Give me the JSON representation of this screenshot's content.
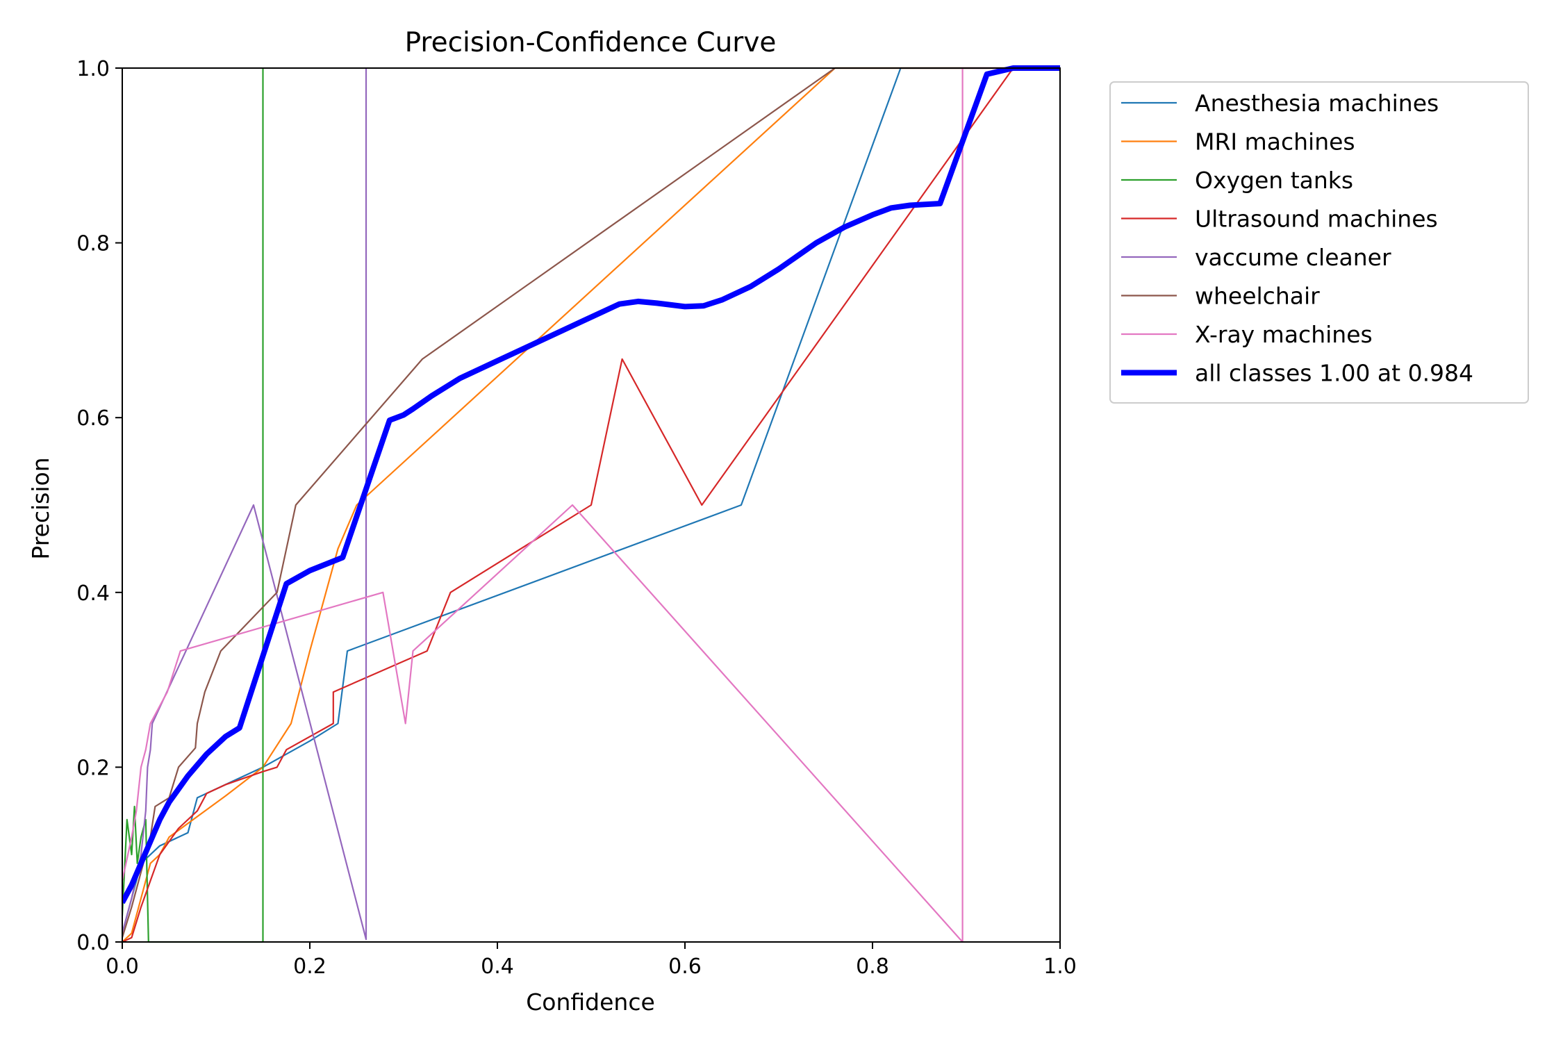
{
  "chart_data": {
    "type": "line",
    "title": "Precision-Confidence Curve",
    "xlabel": "Confidence",
    "ylabel": "Precision",
    "xlim": [
      0,
      1
    ],
    "ylim": [
      0,
      1
    ],
    "xticks": [
      "0.0",
      "0.2",
      "0.4",
      "0.6",
      "0.8",
      "1.0"
    ],
    "yticks": [
      "0.0",
      "0.2",
      "0.4",
      "0.6",
      "0.8",
      "1.0"
    ],
    "grid": false,
    "legend_position": "outside-top-right",
    "series": [
      {
        "name": "Anesthesia machines",
        "color": "#1f77b4",
        "points": [
          [
            0,
            0.01
          ],
          [
            0.01,
            0.05
          ],
          [
            0.02,
            0.09
          ],
          [
            0.03,
            0.1
          ],
          [
            0.04,
            0.11
          ],
          [
            0.07,
            0.125
          ],
          [
            0.08,
            0.165
          ],
          [
            0.1,
            0.175
          ],
          [
            0.15,
            0.2
          ],
          [
            0.2,
            0.23
          ],
          [
            0.23,
            0.25
          ],
          [
            0.24,
            0.333
          ],
          [
            0.66,
            0.5
          ],
          [
            0.83,
            1.0
          ],
          [
            1.0,
            1.0
          ]
        ]
      },
      {
        "name": "MRI machines",
        "color": "#ff7f0e",
        "points": [
          [
            0,
            0.0
          ],
          [
            0.01,
            0.01
          ],
          [
            0.02,
            0.05
          ],
          [
            0.03,
            0.09
          ],
          [
            0.04,
            0.1
          ],
          [
            0.05,
            0.12
          ],
          [
            0.11,
            0.167
          ],
          [
            0.15,
            0.2
          ],
          [
            0.18,
            0.25
          ],
          [
            0.2,
            0.333
          ],
          [
            0.23,
            0.45
          ],
          [
            0.25,
            0.5
          ],
          [
            0.76,
            1.0
          ],
          [
            1.0,
            1.0
          ]
        ]
      },
      {
        "name": "Oxygen tanks",
        "color": "#2ca02c",
        "points": [
          [
            0,
            0.03
          ],
          [
            0.005,
            0.14
          ],
          [
            0.01,
            0.1
          ],
          [
            0.013,
            0.155
          ],
          [
            0.016,
            0.09
          ],
          [
            0.02,
            0.12
          ],
          [
            0.025,
            0.14
          ],
          [
            0.028,
            0.0
          ],
          [
            0.15,
            0.0
          ],
          [
            0.15,
            1.0
          ]
        ]
      },
      {
        "name": "Ultrasound machines",
        "color": "#d62728",
        "points": [
          [
            0,
            0.0
          ],
          [
            0.01,
            0.005
          ],
          [
            0.02,
            0.04
          ],
          [
            0.03,
            0.07
          ],
          [
            0.04,
            0.1
          ],
          [
            0.06,
            0.13
          ],
          [
            0.08,
            0.15
          ],
          [
            0.09,
            0.17
          ],
          [
            0.11,
            0.18
          ],
          [
            0.15,
            0.195
          ],
          [
            0.165,
            0.2
          ],
          [
            0.175,
            0.22
          ],
          [
            0.225,
            0.25
          ],
          [
            0.225,
            0.286
          ],
          [
            0.325,
            0.333
          ],
          [
            0.35,
            0.4
          ],
          [
            0.5,
            0.5
          ],
          [
            0.533,
            0.667
          ],
          [
            0.618,
            0.5
          ],
          [
            0.95,
            1.0
          ],
          [
            1.0,
            1.0
          ]
        ]
      },
      {
        "name": "vaccume cleaner",
        "color": "#9467bd",
        "points": [
          [
            0,
            0.01
          ],
          [
            0.01,
            0.05
          ],
          [
            0.02,
            0.1
          ],
          [
            0.025,
            0.15
          ],
          [
            0.027,
            0.2
          ],
          [
            0.03,
            0.22
          ],
          [
            0.032,
            0.25
          ],
          [
            0.14,
            0.5
          ],
          [
            0.26,
            0.003
          ],
          [
            0.26,
            1.0
          ]
        ]
      },
      {
        "name": "wheelchair",
        "color": "#8c564b",
        "points": [
          [
            0,
            0.005
          ],
          [
            0.01,
            0.04
          ],
          [
            0.02,
            0.08
          ],
          [
            0.03,
            0.12
          ],
          [
            0.035,
            0.155
          ],
          [
            0.05,
            0.165
          ],
          [
            0.06,
            0.2
          ],
          [
            0.078,
            0.222
          ],
          [
            0.08,
            0.25
          ],
          [
            0.088,
            0.286
          ],
          [
            0.105,
            0.333
          ],
          [
            0.165,
            0.4
          ],
          [
            0.185,
            0.5
          ],
          [
            0.32,
            0.667
          ],
          [
            0.76,
            1.0
          ],
          [
            1.0,
            1.0
          ]
        ]
      },
      {
        "name": "X-ray machines",
        "color": "#e377c2",
        "points": [
          [
            0,
            0.07
          ],
          [
            0.01,
            0.12
          ],
          [
            0.015,
            0.15
          ],
          [
            0.02,
            0.2
          ],
          [
            0.025,
            0.22
          ],
          [
            0.03,
            0.25
          ],
          [
            0.048,
            0.286
          ],
          [
            0.062,
            0.333
          ],
          [
            0.278,
            0.4
          ],
          [
            0.302,
            0.25
          ],
          [
            0.31,
            0.333
          ],
          [
            0.48,
            0.5
          ],
          [
            0.896,
            0.0
          ],
          [
            0.896,
            1.0
          ],
          [
            1.0,
            1.0
          ]
        ]
      },
      {
        "name": "all classes 1.00 at 0.984",
        "color": "#0000ff",
        "bold": true,
        "points": [
          [
            0,
            0.045
          ],
          [
            0.01,
            0.065
          ],
          [
            0.02,
            0.09
          ],
          [
            0.03,
            0.115
          ],
          [
            0.04,
            0.14
          ],
          [
            0.05,
            0.16
          ],
          [
            0.07,
            0.19
          ],
          [
            0.09,
            0.215
          ],
          [
            0.11,
            0.235
          ],
          [
            0.125,
            0.245
          ],
          [
            0.175,
            0.41
          ],
          [
            0.2,
            0.425
          ],
          [
            0.235,
            0.44
          ],
          [
            0.285,
            0.597
          ],
          [
            0.3,
            0.603
          ],
          [
            0.31,
            0.61
          ],
          [
            0.33,
            0.625
          ],
          [
            0.36,
            0.645
          ],
          [
            0.4,
            0.665
          ],
          [
            0.44,
            0.685
          ],
          [
            0.47,
            0.7
          ],
          [
            0.49,
            0.71
          ],
          [
            0.51,
            0.72
          ],
          [
            0.53,
            0.73
          ],
          [
            0.55,
            0.733
          ],
          [
            0.57,
            0.731
          ],
          [
            0.6,
            0.727
          ],
          [
            0.62,
            0.728
          ],
          [
            0.64,
            0.735
          ],
          [
            0.67,
            0.75
          ],
          [
            0.7,
            0.77
          ],
          [
            0.74,
            0.8
          ],
          [
            0.77,
            0.818
          ],
          [
            0.8,
            0.832
          ],
          [
            0.82,
            0.84
          ],
          [
            0.84,
            0.843
          ],
          [
            0.872,
            0.845
          ],
          [
            0.922,
            0.993
          ],
          [
            0.95,
            1.0
          ],
          [
            1.0,
            1.0
          ]
        ]
      }
    ]
  }
}
